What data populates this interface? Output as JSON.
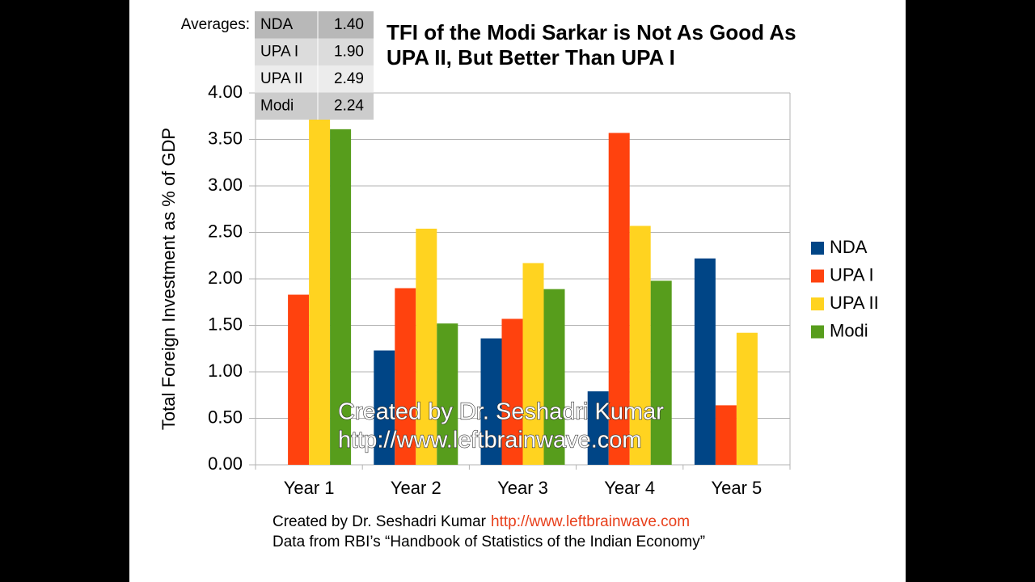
{
  "chart_data": {
    "type": "bar",
    "title": [
      "TFI of the Modi Sarkar is Not As Good As",
      "UPA II, But Better Than UPA I"
    ],
    "y_label": "Total Foreign Investment as % of GDP",
    "categories": [
      "Year 1",
      "Year 2",
      "Year 3",
      "Year 4",
      "Year 5"
    ],
    "series": [
      {
        "name": "NDA",
        "color": "#004586",
        "values": [
          null,
          1.23,
          1.36,
          0.79,
          2.22
        ]
      },
      {
        "name": "UPA I",
        "color": "#ff420e",
        "values": [
          1.83,
          1.9,
          1.57,
          3.57,
          0.64
        ]
      },
      {
        "name": "UPA II",
        "color": "#ffd320",
        "values": [
          3.75,
          2.54,
          2.17,
          2.57,
          1.42
        ]
      },
      {
        "name": "Modi",
        "color": "#579d1c",
        "values": [
          3.61,
          1.52,
          1.89,
          1.98,
          null
        ]
      }
    ],
    "ylim": [
      0,
      4
    ],
    "yticks": [
      {
        "value": 0,
        "label": "0.00"
      },
      {
        "value": 0.5,
        "label": "0.50"
      },
      {
        "value": 1,
        "label": "1.00"
      },
      {
        "value": 1.5,
        "label": "1.50"
      },
      {
        "value": 2,
        "label": "2.00"
      },
      {
        "value": 2.5,
        "label": "2.50"
      },
      {
        "value": 3,
        "label": "3.00"
      },
      {
        "value": 3.5,
        "label": "3.50"
      },
      {
        "value": 4,
        "label": "4.00"
      }
    ],
    "grid": true,
    "legend": "right",
    "averages": {
      "label": "Averages:",
      "rows": [
        [
          "NDA",
          "1.40"
        ],
        [
          "UPA I",
          "1.90"
        ],
        [
          "UPA II",
          "2.49"
        ],
        [
          "Modi",
          "2.24"
        ]
      ]
    },
    "watermark": [
      "Created by Dr. Seshadri Kumar",
      "http://www.leftbrainwave.com"
    ],
    "footer": {
      "credit": "Created by Dr. Seshadri Kumar",
      "url": "http://www.leftbrainwave.com",
      "source": "Data from RBI’s “Handbook of Statistics of the Indian Economy”"
    }
  }
}
